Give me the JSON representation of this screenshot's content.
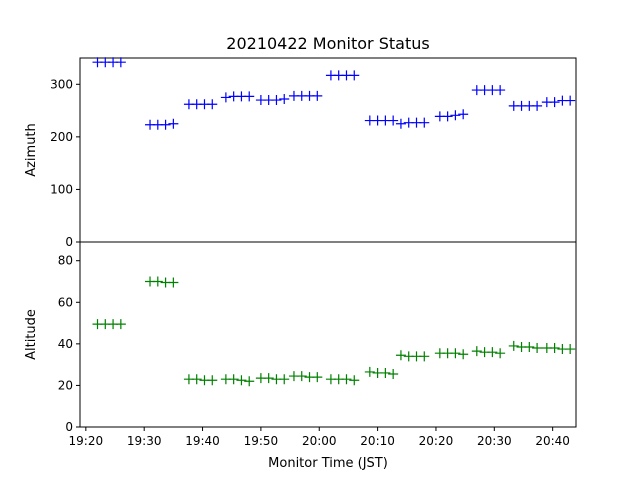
{
  "chart_data": {
    "type": "scatter",
    "title": "20210422 Monitor Status",
    "xlabel": "Monitor Time (JST)",
    "x_ticks": [
      "19:20",
      "19:30",
      "19:40",
      "19:50",
      "20:00",
      "20:10",
      "20:20",
      "20:30",
      "20:40"
    ],
    "xlim": [
      "19:19",
      "20:44"
    ],
    "marker": "+",
    "panels": [
      {
        "ylabel": "Azimuth",
        "ylim": [
          0,
          350
        ],
        "y_ticks": [
          0,
          100,
          200,
          300
        ],
        "color": "#0000ff",
        "series": [
          {
            "x": [
              "19:22",
              "19:23:20",
              "19:24:40",
              "19:26"
            ],
            "y": [
              342,
              342,
              342,
              342
            ]
          },
          {
            "x": [
              "19:31",
              "19:32:20",
              "19:33:40",
              "19:35"
            ],
            "y": [
              223,
              223,
              223,
              225
            ]
          },
          {
            "x": [
              "19:37:40",
              "19:39",
              "19:40:20",
              "19:41:40"
            ],
            "y": [
              262,
              262,
              262,
              262
            ]
          },
          {
            "x": [
              "19:44",
              "19:45:20",
              "19:46:40",
              "19:48"
            ],
            "y": [
              275,
              277,
              277,
              277
            ]
          },
          {
            "x": [
              "19:50",
              "19:51:20",
              "19:52:40",
              "19:54"
            ],
            "y": [
              270,
              270,
              270,
              272
            ]
          },
          {
            "x": [
              "19:55:40",
              "19:57",
              "19:58:20",
              "19:59:40"
            ],
            "y": [
              278,
              278,
              278,
              278
            ]
          },
          {
            "x": [
              "20:02",
              "20:03:20",
              "20:04:40",
              "20:06"
            ],
            "y": [
              317,
              317,
              317,
              317
            ]
          },
          {
            "x": [
              "20:08:40",
              "20:10",
              "20:11:20",
              "20:12:40"
            ],
            "y": [
              231,
              231,
              231,
              231
            ]
          },
          {
            "x": [
              "20:14",
              "20:15:20",
              "20:16:40",
              "20:18"
            ],
            "y": [
              225,
              227,
              227,
              227
            ]
          },
          {
            "x": [
              "20:20:40",
              "20:22",
              "20:23:20",
              "20:24:40"
            ],
            "y": [
              239,
              239,
              241,
              243
            ]
          },
          {
            "x": [
              "20:27",
              "20:28:20",
              "20:29:40",
              "20:31"
            ],
            "y": [
              289,
              289,
              289,
              289
            ]
          },
          {
            "x": [
              "20:33:20",
              "20:34:40",
              "20:36",
              "20:37:20"
            ],
            "y": [
              259,
              259,
              259,
              259
            ]
          },
          {
            "x": [
              "20:39",
              "20:40:20",
              "20:41:40",
              "20:43"
            ],
            "y": [
              266,
              266,
              269,
              269
            ]
          }
        ]
      },
      {
        "ylabel": "Altitude",
        "ylim": [
          0,
          89
        ],
        "y_ticks": [
          0,
          20,
          40,
          60,
          80
        ],
        "color": "#008000",
        "series": [
          {
            "x": [
              "19:22",
              "19:23:20",
              "19:24:40",
              "19:26"
            ],
            "y": [
              49.5,
              49.5,
              49.5,
              49.5
            ]
          },
          {
            "x": [
              "19:31",
              "19:32:20",
              "19:33:40",
              "19:35"
            ],
            "y": [
              70,
              70,
              69.5,
              69.5
            ]
          },
          {
            "x": [
              "19:37:40",
              "19:39",
              "19:40:20",
              "19:41:40"
            ],
            "y": [
              23,
              23,
              22.5,
              22.5
            ]
          },
          {
            "x": [
              "19:44",
              "19:45:20",
              "19:46:40",
              "19:48"
            ],
            "y": [
              23,
              23,
              22.5,
              22
            ]
          },
          {
            "x": [
              "19:50",
              "19:51:20",
              "19:52:40",
              "19:54"
            ],
            "y": [
              23.5,
              23.5,
              23,
              23
            ]
          },
          {
            "x": [
              "19:55:40",
              "19:57",
              "19:58:20",
              "19:59:40"
            ],
            "y": [
              24.5,
              24.5,
              24,
              24
            ]
          },
          {
            "x": [
              "20:02",
              "20:03:20",
              "20:04:40",
              "20:06"
            ],
            "y": [
              23,
              23,
              23,
              22.5
            ]
          },
          {
            "x": [
              "20:08:40",
              "20:10",
              "20:11:20",
              "20:12:40"
            ],
            "y": [
              26.5,
              26,
              26,
              25.5
            ]
          },
          {
            "x": [
              "20:14",
              "20:15:20",
              "20:16:40",
              "20:18"
            ],
            "y": [
              34.5,
              34,
              34,
              34
            ]
          },
          {
            "x": [
              "20:20:40",
              "20:22",
              "20:23:20",
              "20:24:40"
            ],
            "y": [
              35.5,
              35.5,
              35.5,
              35
            ]
          },
          {
            "x": [
              "20:27",
              "20:28:20",
              "20:29:40",
              "20:31"
            ],
            "y": [
              36.5,
              36,
              36,
              35.5
            ]
          },
          {
            "x": [
              "20:33:20",
              "20:34:40",
              "20:36",
              "20:37:20"
            ],
            "y": [
              39,
              38.5,
              38.5,
              38
            ]
          },
          {
            "x": [
              "20:39",
              "20:40:20",
              "20:41:40",
              "20:43"
            ],
            "y": [
              38,
              38,
              37.5,
              37.5
            ]
          }
        ]
      }
    ]
  }
}
